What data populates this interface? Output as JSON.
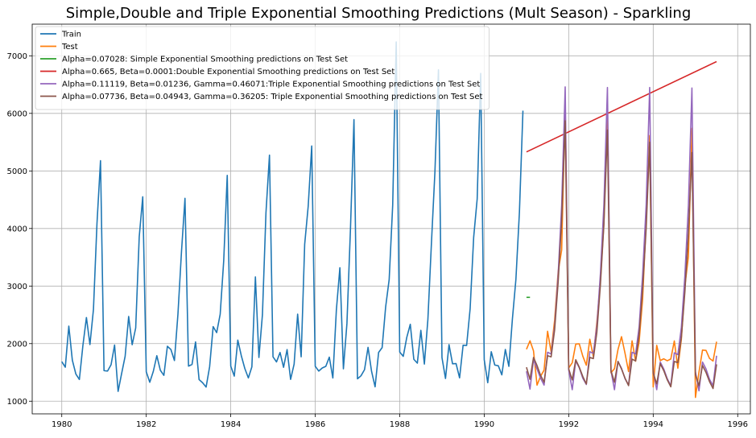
{
  "chart_data": {
    "type": "line",
    "title": "Simple,Double and Triple Exponential Smoothing Predictions (Mult Season) - Sparkling",
    "xlabel": "",
    "ylabel": "",
    "xlim": [
      1979.3,
      1996.3
    ],
    "ylim": [
      780,
      7550
    ],
    "grid": true,
    "legend_position": "top-left",
    "x_ticks": [
      1980,
      1982,
      1984,
      1986,
      1988,
      1990,
      1992,
      1994,
      1996
    ],
    "y_ticks": [
      1000,
      2000,
      3000,
      4000,
      5000,
      6000,
      7000
    ],
    "series": [
      {
        "name": "Train",
        "color": "#1f77b4",
        "start": 1980.0,
        "step": 0.0833333,
        "values": [
          1686,
          1591,
          2304,
          1712,
          1471,
          1377,
          1966,
          2453,
          1984,
          2596,
          4087,
          5179,
          1530,
          1523,
          1633,
          1976,
          1170,
          1480,
          1781,
          2472,
          1981,
          2273,
          3857,
          4551,
          1510,
          1329,
          1518,
          1790,
          1537,
          1449,
          1954,
          1897,
          1706,
          2514,
          3593,
          4524,
          1609,
          1638,
          2030,
          1375,
          1320,
          1245,
          1600,
          2296,
          2191,
          2511,
          3440,
          4923,
          1609,
          1435,
          2061,
          1789,
          1567,
          1404,
          1597,
          3159,
          1759,
          2504,
          4273,
          5274,
          1771,
          1682,
          1846,
          1589,
          1896,
          1379,
          1645,
          2512,
          1771,
          3727,
          4388,
          5434,
          1606,
          1523,
          1577,
          1605,
          1765,
          1403,
          2584,
          3318,
          1562,
          2349,
          3987,
          5891,
          1389,
          1442,
          1548,
          1935,
          1518,
          1250,
          1847,
          1930,
          2638,
          3114,
          4405,
          7242,
          1853,
          1779,
          2108,
          2336,
          1728,
          1661,
          2230,
          1645,
          2421,
          3740,
          4988,
          6757,
          1757,
          1394,
          1982,
          1650,
          1654,
          1406,
          1971,
          1968,
          2608,
          3845,
          4514,
          6694,
          1720,
          1321,
          1859,
          1628,
          1615,
          1457,
          1899,
          1605,
          2424,
          3116,
          4286,
          6047
        ]
      },
      {
        "name": "Test",
        "color": "#ff7f0e",
        "start": 1991.0,
        "step": 0.0833333,
        "values": [
          1902,
          2049,
          1874,
          1279,
          1432,
          1540,
          2214,
          1857,
          2408,
          3252,
          3627,
          6153,
          1577,
          1667,
          1993,
          1997,
          1783,
          1625,
          2076,
          1773,
          2377,
          3088,
          4096,
          6119,
          1494,
          1564,
          1898,
          2121,
          1831,
          1515,
          2048,
          1695,
          2031,
          2780,
          4125,
          5616,
          1248,
          1970,
          1705,
          1736,
          1702,
          1733,
          2047,
          1573,
          2076,
          2996,
          3512,
          5742,
          1065,
          1504,
          1887,
          1883,
          1743,
          1698,
          2034
        ]
      },
      {
        "name": "Alpha=0.07028: Simple Exponential Smoothing predictions on Test Set",
        "color": "#2ca02c",
        "start": 1991.0,
        "step": 0.0833333,
        "values": [
          2804,
          2804
        ]
      },
      {
        "name": "Alpha=0.665, Beta=0.0001:Double Exponential Smoothing predictions on Test Set",
        "color": "#d62728",
        "start": 1991.0,
        "step": 4.5,
        "values": [
          5330,
          6900
        ]
      },
      {
        "name": "Alpha=0.11119, Beta=0.01236, Gamma=0.46071:Triple Exponential Smoothing predictions on Test Set",
        "color": "#9467bd",
        "start": 1991.0,
        "step": 0.0833333,
        "values": [
          1520,
          1210,
          1720,
          1560,
          1400,
          1280,
          1850,
          1820,
          2300,
          3200,
          4400,
          6460,
          1540,
          1200,
          1700,
          1580,
          1400,
          1290,
          1860,
          1830,
          2310,
          3210,
          4420,
          6450,
          1530,
          1200,
          1690,
          1570,
          1390,
          1280,
          1850,
          1820,
          2290,
          3200,
          4410,
          6450,
          1520,
          1200,
          1680,
          1560,
          1390,
          1270,
          1840,
          1810,
          2280,
          3180,
          4400,
          6440,
          1510,
          1180,
          1680,
          1560,
          1380,
          1270,
          1790
        ]
      },
      {
        "name": "Alpha=0.07736, Beta=0.04943, Gamma=0.36205: Triple Exponential Smoothing predictions on Test Set",
        "color": "#8c564b",
        "start": 1991.0,
        "step": 0.0833333,
        "values": [
          1590,
          1380,
          1760,
          1620,
          1450,
          1330,
          1790,
          1770,
          2240,
          3070,
          4150,
          5870,
          1560,
          1370,
          1720,
          1590,
          1430,
          1300,
          1760,
          1740,
          2200,
          3020,
          4080,
          5710,
          1530,
          1330,
          1690,
          1560,
          1400,
          1270,
          1730,
          1700,
          2160,
          2960,
          4000,
          5500,
          1490,
          1300,
          1650,
          1530,
          1370,
          1250,
          1690,
          1670,
          2110,
          2900,
          3920,
          5320,
          1460,
          1270,
          1620,
          1500,
          1340,
          1220,
          1640
        ]
      }
    ]
  }
}
